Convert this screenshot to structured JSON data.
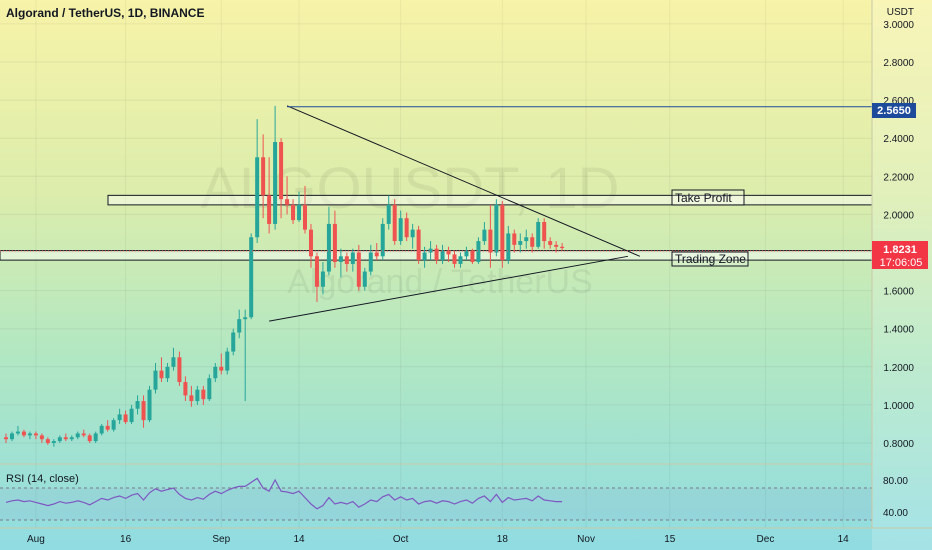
{
  "header": {
    "symbol_title": "Algorand / TetherUS, 1D, BINANCE"
  },
  "watermark": {
    "ticker": "ALGOUSDT, 1D",
    "name": "Algorand / TetherUS"
  },
  "colors": {
    "up": "#26a69a",
    "down": "#ef5350",
    "price_tag": "#f23645",
    "resistance_tag": "#1e4a9c",
    "rsi_line": "#7e57c2"
  },
  "price_axis": {
    "currency": "USDT",
    "labels": [
      "3.0000",
      "2.8000",
      "2.6000",
      "2.4000",
      "2.2000",
      "2.0000",
      "1.8000",
      "1.6000",
      "1.4000",
      "1.2000",
      "1.0000",
      "0.8000"
    ]
  },
  "last_price": {
    "value": "1.8231",
    "countdown": "17:06:05"
  },
  "resistance_level": {
    "value": "2.5650"
  },
  "annotations": {
    "take_profit": "Take Profit",
    "trading_zone": "Trading Zone"
  },
  "rsi": {
    "title": "RSI (14, close)",
    "labels": [
      "80.00",
      "40.00"
    ]
  },
  "time_axis": {
    "labels": [
      "Aug",
      "16",
      "Sep",
      "14",
      "Oct",
      "18",
      "Nov",
      "15",
      "Dec",
      "14"
    ]
  },
  "chart_data": {
    "type": "candlestick",
    "title": "Algorand / TetherUS, 1D, BINANCE",
    "y_unit": "USDT",
    "ylim": [
      0.73,
      3.0
    ],
    "start_date": "2021-07-27",
    "ohlc": [
      [
        0.83,
        0.85,
        0.8,
        0.82
      ],
      [
        0.82,
        0.86,
        0.81,
        0.85
      ],
      [
        0.85,
        0.89,
        0.84,
        0.86
      ],
      [
        0.86,
        0.87,
        0.83,
        0.84
      ],
      [
        0.84,
        0.86,
        0.82,
        0.85
      ],
      [
        0.85,
        0.86,
        0.82,
        0.84
      ],
      [
        0.84,
        0.85,
        0.8,
        0.82
      ],
      [
        0.82,
        0.83,
        0.79,
        0.8
      ],
      [
        0.8,
        0.82,
        0.78,
        0.81
      ],
      [
        0.81,
        0.84,
        0.8,
        0.83
      ],
      [
        0.83,
        0.85,
        0.81,
        0.82
      ],
      [
        0.82,
        0.84,
        0.81,
        0.83
      ],
      [
        0.83,
        0.86,
        0.82,
        0.85
      ],
      [
        0.85,
        0.87,
        0.83,
        0.84
      ],
      [
        0.84,
        0.85,
        0.8,
        0.81
      ],
      [
        0.81,
        0.86,
        0.8,
        0.85
      ],
      [
        0.85,
        0.9,
        0.84,
        0.89
      ],
      [
        0.89,
        0.92,
        0.86,
        0.87
      ],
      [
        0.87,
        0.93,
        0.86,
        0.92
      ],
      [
        0.92,
        0.98,
        0.9,
        0.95
      ],
      [
        0.95,
        0.97,
        0.9,
        0.91
      ],
      [
        0.91,
        1.0,
        0.9,
        0.98
      ],
      [
        0.98,
        1.05,
        0.95,
        1.02
      ],
      [
        1.02,
        1.05,
        0.88,
        0.92
      ],
      [
        0.92,
        1.1,
        0.91,
        1.08
      ],
      [
        1.08,
        1.22,
        1.06,
        1.18
      ],
      [
        1.18,
        1.25,
        1.12,
        1.14
      ],
      [
        1.14,
        1.22,
        1.12,
        1.2
      ],
      [
        1.2,
        1.3,
        1.18,
        1.25
      ],
      [
        1.25,
        1.28,
        1.1,
        1.12
      ],
      [
        1.12,
        1.15,
        1.02,
        1.05
      ],
      [
        1.05,
        1.1,
        0.99,
        1.02
      ],
      [
        1.02,
        1.1,
        1.0,
        1.08
      ],
      [
        1.08,
        1.1,
        1.0,
        1.03
      ],
      [
        1.03,
        1.16,
        1.02,
        1.14
      ],
      [
        1.14,
        1.22,
        1.12,
        1.2
      ],
      [
        1.2,
        1.27,
        1.16,
        1.18
      ],
      [
        1.18,
        1.3,
        1.16,
        1.28
      ],
      [
        1.28,
        1.4,
        1.26,
        1.38
      ],
      [
        1.38,
        1.5,
        1.35,
        1.45
      ],
      [
        1.45,
        1.5,
        1.02,
        1.46
      ],
      [
        1.46,
        1.9,
        1.45,
        1.88
      ],
      [
        1.88,
        2.5,
        1.85,
        2.3
      ],
      [
        2.3,
        2.42,
        1.98,
        2.1
      ],
      [
        2.1,
        2.3,
        1.9,
        1.95
      ],
      [
        1.95,
        2.57,
        1.92,
        2.38
      ],
      [
        2.38,
        2.4,
        1.98,
        2.08
      ],
      [
        2.08,
        2.2,
        2.0,
        2.05
      ],
      [
        2.05,
        2.08,
        1.95,
        1.97
      ],
      [
        1.97,
        2.12,
        1.96,
        2.05
      ],
      [
        2.05,
        2.15,
        1.9,
        1.92
      ],
      [
        1.92,
        1.95,
        1.72,
        1.78
      ],
      [
        1.78,
        1.8,
        1.54,
        1.62
      ],
      [
        1.62,
        1.75,
        1.58,
        1.7
      ],
      [
        1.7,
        2.04,
        1.68,
        1.95
      ],
      [
        1.95,
        2.02,
        1.72,
        1.75
      ],
      [
        1.75,
        1.82,
        1.67,
        1.78
      ],
      [
        1.78,
        1.8,
        1.7,
        1.74
      ],
      [
        1.74,
        1.82,
        1.7,
        1.8
      ],
      [
        1.8,
        1.84,
        1.6,
        1.62
      ],
      [
        1.62,
        1.72,
        1.6,
        1.7
      ],
      [
        1.7,
        1.84,
        1.68,
        1.8
      ],
      [
        1.8,
        1.85,
        1.76,
        1.78
      ],
      [
        1.78,
        1.98,
        1.76,
        1.95
      ],
      [
        1.95,
        2.1,
        1.92,
        2.05
      ],
      [
        2.05,
        2.08,
        1.84,
        1.86
      ],
      [
        1.86,
        2.02,
        1.84,
        1.98
      ],
      [
        1.98,
        2.01,
        1.86,
        1.88
      ],
      [
        1.88,
        1.95,
        1.82,
        1.92
      ],
      [
        1.92,
        1.94,
        1.74,
        1.76
      ],
      [
        1.76,
        1.83,
        1.72,
        1.8
      ],
      [
        1.8,
        1.86,
        1.76,
        1.82
      ],
      [
        1.82,
        1.84,
        1.74,
        1.76
      ],
      [
        1.76,
        1.84,
        1.74,
        1.81
      ],
      [
        1.81,
        1.83,
        1.75,
        1.79
      ],
      [
        1.79,
        1.81,
        1.72,
        1.74
      ],
      [
        1.74,
        1.8,
        1.72,
        1.78
      ],
      [
        1.78,
        1.83,
        1.76,
        1.81
      ],
      [
        1.81,
        1.82,
        1.74,
        1.75
      ],
      [
        1.75,
        1.88,
        1.74,
        1.86
      ],
      [
        1.86,
        1.96,
        1.84,
        1.92
      ],
      [
        1.92,
        2.05,
        1.72,
        1.8
      ],
      [
        1.8,
        2.08,
        1.78,
        2.05
      ],
      [
        2.05,
        2.07,
        1.72,
        1.76
      ],
      [
        1.76,
        1.94,
        1.74,
        1.9
      ],
      [
        1.9,
        1.92,
        1.8,
        1.84
      ],
      [
        1.84,
        1.9,
        1.8,
        1.86
      ],
      [
        1.86,
        1.92,
        1.82,
        1.88
      ],
      [
        1.88,
        1.9,
        1.8,
        1.83
      ],
      [
        1.83,
        1.98,
        1.82,
        1.96
      ],
      [
        1.96,
        1.98,
        1.82,
        1.86
      ],
      [
        1.86,
        1.88,
        1.82,
        1.84
      ],
      [
        1.84,
        1.86,
        1.8,
        1.83
      ],
      [
        1.83,
        1.85,
        1.81,
        1.8231
      ]
    ],
    "rsi_values": [
      52,
      54,
      55,
      53,
      54,
      52,
      50,
      48,
      50,
      53,
      51,
      52,
      54,
      52,
      49,
      53,
      57,
      55,
      58,
      60,
      57,
      61,
      63,
      55,
      64,
      69,
      66,
      68,
      70,
      62,
      57,
      55,
      58,
      56,
      62,
      66,
      63,
      67,
      70,
      72,
      72,
      77,
      82,
      70,
      66,
      80,
      66,
      65,
      63,
      66,
      58,
      50,
      44,
      48,
      58,
      50,
      52,
      50,
      53,
      46,
      50,
      55,
      53,
      59,
      62,
      55,
      59,
      55,
      57,
      50,
      53,
      54,
      51,
      54,
      53,
      50,
      53,
      55,
      51,
      57,
      60,
      53,
      62,
      52,
      58,
      55,
      56,
      57,
      54,
      60,
      55,
      54,
      53,
      53
    ],
    "rsi_levels": [
      70,
      30
    ],
    "trendlines": [
      {
        "name": "triangle-upper",
        "points": [
          [
            "2021-09-12",
            2.57
          ],
          [
            "2021-11-10",
            1.78
          ]
        ]
      },
      {
        "name": "triangle-lower",
        "points": [
          [
            "2021-09-09",
            1.44
          ],
          [
            "2021-11-08",
            1.78
          ]
        ]
      },
      {
        "name": "resistance",
        "points": [
          [
            "2021-09-12",
            2.565
          ],
          [
            "2021-12-31",
            2.565
          ]
        ]
      }
    ],
    "zones": [
      {
        "name": "Take Profit",
        "from": 2.05,
        "to": 2.1
      },
      {
        "name": "Trading Zone",
        "from": 1.76,
        "to": 1.81
      }
    ]
  }
}
